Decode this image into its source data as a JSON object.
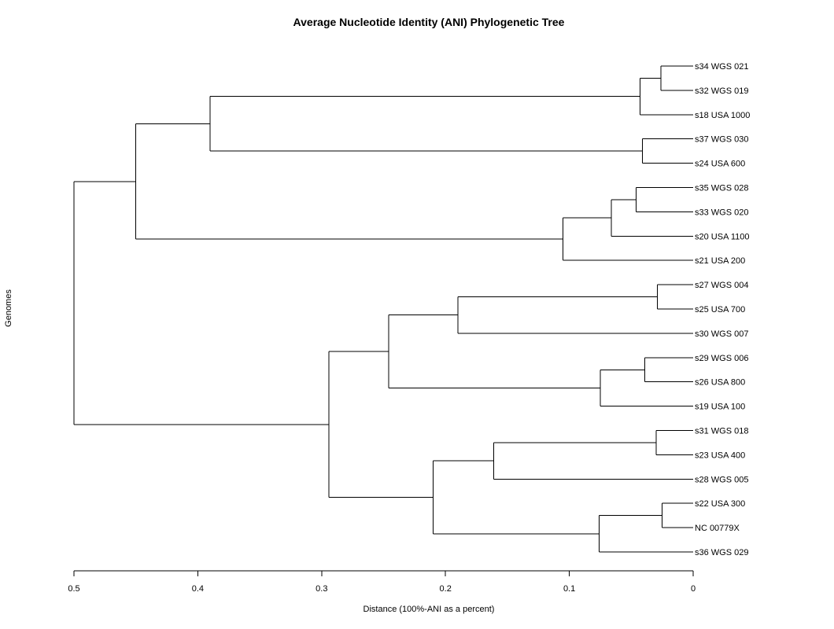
{
  "chart_data": {
    "type": "dendrogram",
    "title": "Average Nucleotide Identity (ANI) Phylogenetic Tree",
    "xlabel": "Distance (100%-ANI as a percent)",
    "ylabel": "Genomes",
    "xlim": [
      0.5,
      0
    ],
    "x_ticks": [
      0.5,
      0.4,
      0.3,
      0.2,
      0.1,
      0
    ],
    "x_tick_labels": [
      "0.5",
      "0.4",
      "0.3",
      "0.2",
      "0.1",
      "0"
    ],
    "leaves": [
      "s34 WGS 021",
      "s32 WGS 019",
      "s18 USA 1000",
      "s37 WGS 030",
      "s24 USA 600",
      "s35 WGS 028",
      "s33 WGS 020",
      "s20 USA 1100",
      "s21 USA 200",
      "s27 WGS 004",
      "s25 USA 700",
      "s30 WGS 007",
      "s29 WGS 006",
      "s26 USA 800",
      "s19 USA 100",
      "s31 WGS 018",
      "s23 USA 400",
      "s28 WGS 005",
      "s22 USA 300",
      "NC 00779X",
      "s36 WGS 029"
    ],
    "tree": {
      "h": 0.5,
      "c": [
        {
          "h": 0.45,
          "c": [
            {
              "h": 0.39,
              "c": [
                {
                  "h": 0.043,
                  "c": [
                    {
                      "h": 0.026,
                      "c": [
                        0,
                        1
                      ]
                    },
                    2
                  ]
                },
                {
                  "h": 0.041,
                  "c": [
                    3,
                    4
                  ]
                }
              ]
            },
            {
              "h": 0.105,
              "c": [
                {
                  "h": 0.066,
                  "c": [
                    {
                      "h": 0.046,
                      "c": [
                        5,
                        6
                      ]
                    },
                    7
                  ]
                },
                8
              ]
            }
          ]
        },
        {
          "h": 0.294,
          "c": [
            {
              "h": 0.246,
              "c": [
                {
                  "h": 0.19,
                  "c": [
                    {
                      "h": 0.029,
                      "c": [
                        9,
                        10
                      ]
                    },
                    11
                  ]
                },
                {
                  "h": 0.075,
                  "c": [
                    {
                      "h": 0.039,
                      "c": [
                        12,
                        13
                      ]
                    },
                    14
                  ]
                }
              ]
            },
            {
              "h": 0.21,
              "c": [
                {
                  "h": 0.161,
                  "c": [
                    {
                      "h": 0.03,
                      "c": [
                        15,
                        16
                      ]
                    },
                    17
                  ]
                },
                {
                  "h": 0.076,
                  "c": [
                    {
                      "h": 0.025,
                      "c": [
                        18,
                        19
                      ]
                    },
                    20
                  ]
                }
              ]
            }
          ]
        }
      ]
    }
  }
}
